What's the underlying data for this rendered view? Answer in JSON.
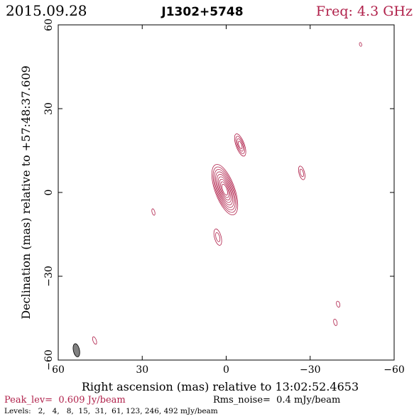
{
  "header": {
    "date": "2015.09.28",
    "source": "J1302+5748",
    "freq": "Freq: 4.3 GHz"
  },
  "footer": {
    "peak": "Peak_lev=  0.609 Jy/beam",
    "rms": "Rms_noise=  0.4 mJy/beam",
    "levels": "Levels:   2,   4,   8,  15,  31,  61, 123, 246, 492 mJy/beam"
  },
  "colors": {
    "contour": "#b0204a",
    "beam": "#808080",
    "axis": "#000000"
  },
  "chart_data": {
    "type": "contour",
    "xlabel": "Right ascension (mas) relative to 13:02:52.4653",
    "ylabel": "Declination (mas) relative to +57:48:37.609",
    "xlim": [
      60,
      -60
    ],
    "ylim": [
      -60,
      60
    ],
    "xticks": [
      60,
      30,
      0,
      -30,
      -60
    ],
    "yticks": [
      -60,
      -30,
      0,
      30,
      60
    ],
    "xtick_labels": [
      "60",
      "30",
      "0",
      "−30",
      "−60"
    ],
    "ytick_labels": [
      "−60",
      "−30",
      "0",
      "30",
      "60"
    ],
    "levels_mJy": [
      2,
      4,
      8,
      15,
      31,
      61,
      123,
      246,
      492
    ],
    "components": [
      {
        "x": 0.5,
        "y": 1,
        "major": 9.5,
        "minor": 3.5,
        "pa": 20,
        "n": 9
      },
      {
        "x": -5,
        "y": 17,
        "major": 4.2,
        "minor": 1.5,
        "pa": 20,
        "n": 4
      },
      {
        "x": -27,
        "y": 7,
        "major": 2.5,
        "minor": 1.0,
        "pa": 15,
        "n": 2
      },
      {
        "x": 3,
        "y": -16,
        "major": 3.0,
        "minor": 1.2,
        "pa": 15,
        "n": 2
      },
      {
        "x": 26,
        "y": -7,
        "major": 1.2,
        "minor": 0.5,
        "pa": 15,
        "n": 1
      },
      {
        "x": -48,
        "y": 53,
        "major": 0.7,
        "minor": 0.4,
        "pa": 15,
        "n": 1
      },
      {
        "x": -40,
        "y": -40,
        "major": 1.1,
        "minor": 0.6,
        "pa": 15,
        "n": 1
      },
      {
        "x": -39,
        "y": -46.5,
        "major": 1.2,
        "minor": 0.6,
        "pa": 15,
        "n": 1
      },
      {
        "x": 47,
        "y": -53,
        "major": 1.4,
        "minor": 0.6,
        "pa": 20,
        "n": 1
      }
    ],
    "beam": {
      "x": 53.5,
      "y": -56.5,
      "major": 2.4,
      "minor": 1.1,
      "pa": 12
    }
  }
}
